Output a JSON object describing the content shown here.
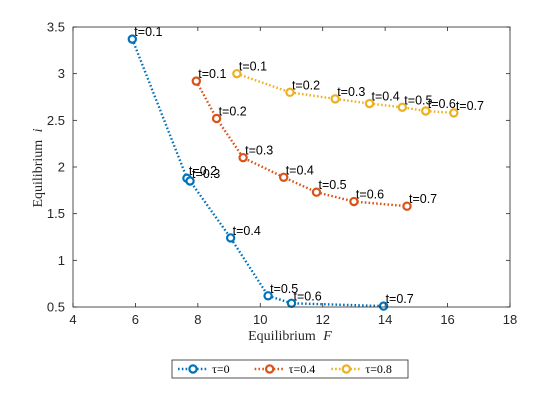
{
  "chart_data": {
    "type": "line",
    "title": "",
    "xlabel_main": "Equilibrium",
    "xlabel_var": "F",
    "ylabel_main": "Equilibrium",
    "ylabel_var": "i",
    "xlim": [
      4,
      18
    ],
    "ylim": [
      0.5,
      3.5
    ],
    "xticks": [
      4,
      6,
      8,
      10,
      12,
      14,
      16,
      18
    ],
    "yticks": [
      0.5,
      1,
      1.5,
      2,
      2.5,
      3,
      3.5
    ],
    "grid": false,
    "legend_position": "bottom-outside",
    "series": [
      {
        "name": "τ=0",
        "color": "#0072BD",
        "points": [
          {
            "x": 5.9,
            "y": 3.37,
            "label": "t=0.1"
          },
          {
            "x": 7.65,
            "y": 1.88,
            "label": "t=0.2"
          },
          {
            "x": 7.75,
            "y": 1.85,
            "label": "t=0.3"
          },
          {
            "x": 9.05,
            "y": 1.24,
            "label": "t=0.4"
          },
          {
            "x": 10.25,
            "y": 0.62,
            "label": "t=0.5"
          },
          {
            "x": 11.0,
            "y": 0.54,
            "label": "t=0.6"
          },
          {
            "x": 13.95,
            "y": 0.51,
            "label": "t=0.7"
          }
        ]
      },
      {
        "name": "τ=0.4",
        "color": "#D95319",
        "points": [
          {
            "x": 7.95,
            "y": 2.92,
            "label": "t=0.1"
          },
          {
            "x": 8.6,
            "y": 2.52,
            "label": "t=0.2"
          },
          {
            "x": 9.45,
            "y": 2.1,
            "label": "t=0.3"
          },
          {
            "x": 10.75,
            "y": 1.89,
            "label": "t=0.4"
          },
          {
            "x": 11.8,
            "y": 1.73,
            "label": "t=0.5"
          },
          {
            "x": 13.0,
            "y": 1.63,
            "label": "t=0.6"
          },
          {
            "x": 14.7,
            "y": 1.58,
            "label": "t=0.7"
          }
        ]
      },
      {
        "name": "τ=0.8",
        "color": "#EDB120",
        "points": [
          {
            "x": 9.25,
            "y": 3.0,
            "label": "t=0.1"
          },
          {
            "x": 10.95,
            "y": 2.8,
            "label": "t=0.2"
          },
          {
            "x": 12.4,
            "y": 2.73,
            "label": "t=0.3"
          },
          {
            "x": 13.5,
            "y": 2.68,
            "label": "t=0.4"
          },
          {
            "x": 14.55,
            "y": 2.64,
            "label": "t=0.5"
          },
          {
            "x": 15.3,
            "y": 2.6,
            "label": "t=0.6"
          },
          {
            "x": 16.2,
            "y": 2.58,
            "label": "t=0.7"
          }
        ]
      }
    ]
  }
}
